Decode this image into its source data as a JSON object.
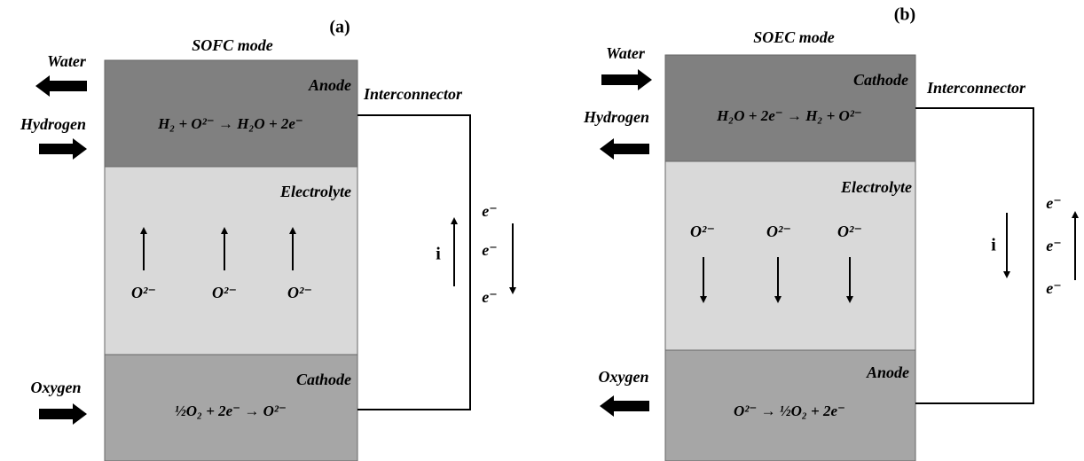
{
  "panels": [
    {
      "label": "(a)",
      "mode": "SOFC mode",
      "streams": [
        "Water",
        "Hydrogen",
        "Oxygen"
      ],
      "layers": [
        {
          "name": "Anode",
          "reaction": "H₂ + O²⁻ → H₂O + 2e⁻"
        },
        {
          "name": "Electrolyte"
        },
        {
          "name": "Cathode",
          "reaction": "½O₂ + 2e⁻ → O²⁻"
        }
      ],
      "ions": [
        "O²⁻",
        "O²⁻",
        "O²⁻"
      ],
      "interconnector": "Interconnector",
      "current": "i",
      "electrons": [
        "e⁻",
        "e⁻",
        "e⁻"
      ]
    },
    {
      "label": "(b)",
      "mode": "SOEC mode",
      "streams": [
        "Water",
        "Hydrogen",
        "Oxygen"
      ],
      "layers": [
        {
          "name": "Cathode",
          "reaction": "H₂O + 2e⁻ → H₂ + O²⁻"
        },
        {
          "name": "Electrolyte"
        },
        {
          "name": "Anode",
          "reaction": "O²⁻ → ½O₂ + 2e⁻"
        }
      ],
      "ions": [
        "O²⁻",
        "O²⁻",
        "O²⁻"
      ],
      "interconnector": "Interconnector",
      "current": "i",
      "electrons": [
        "e⁻",
        "e⁻",
        "e⁻"
      ]
    }
  ]
}
